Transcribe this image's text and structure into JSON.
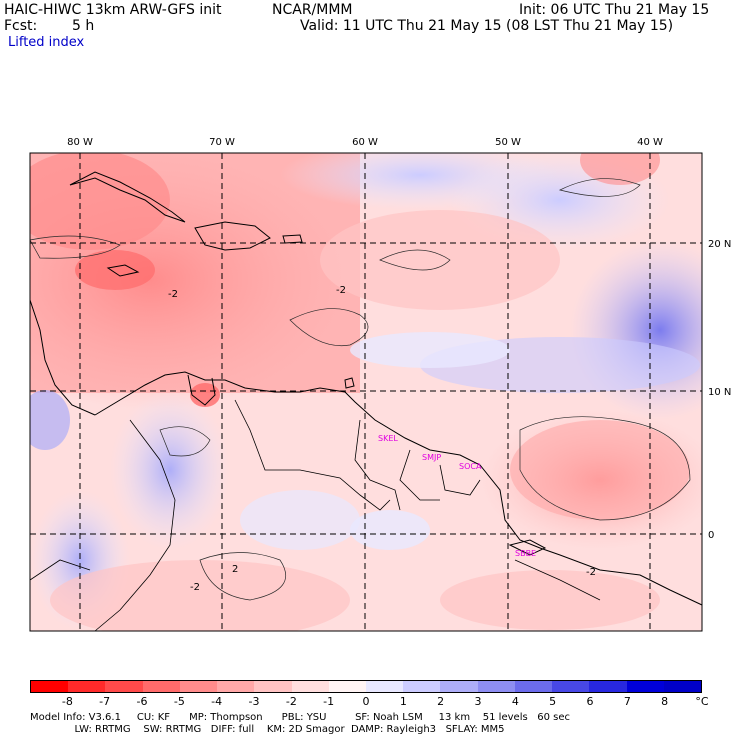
{
  "header": {
    "model": "HAIC-HIWC 13km ARW-GFS init",
    "center": "NCAR/MMM",
    "init": "Init: 06 UTC Thu 21 May 15",
    "fcst_label": "Fcst:",
    "fcst_value": "5 h",
    "valid": "Valid: 11 UTC Thu 21 May 15 (08 LST Thu 21 May 15)",
    "field": "Lifted index"
  },
  "map": {
    "lon_labels": [
      "80 W",
      "70 W",
      "60 W",
      "50 W",
      "40 W"
    ],
    "lat_labels": [
      "20 N",
      "10 N",
      "0"
    ],
    "stations": [
      "SKEL",
      "SMJP",
      "SOCA",
      "SBBE"
    ],
    "contour_labels": [
      "-2",
      "-2",
      "-2",
      "-2",
      "2"
    ]
  },
  "colorbar": {
    "unit": "°C",
    "labels": [
      "-8",
      "-7",
      "-6",
      "-5",
      "-4",
      "-3",
      "-2",
      "-1",
      "0",
      "1",
      "2",
      "3",
      "4",
      "5",
      "6",
      "7",
      "8"
    ],
    "colors": [
      "#ff0000",
      "#ff2a2a",
      "#ff4a4a",
      "#ff6b6b",
      "#ff8c8c",
      "#ffa8a8",
      "#ffc4c4",
      "#ffdede",
      "#fff4f4",
      "#e8e8ff",
      "#ccccff",
      "#aeaef8",
      "#8e8ef2",
      "#6c6cec",
      "#4848e6",
      "#2828e0",
      "#0000da",
      "#0000c8"
    ]
  },
  "footer": {
    "line1": "Model Info: V3.6.1     CU: KF      MP: Thompson      PBL: YSU         SF: Noah LSM     13 km    51 levels   60 sec",
    "line2": "              LW: RRTMG    SW: RRTMG   DIFF: full    KM: 2D Smagor  DAMP: Rayleigh3   SFLAY: MM5"
  }
}
